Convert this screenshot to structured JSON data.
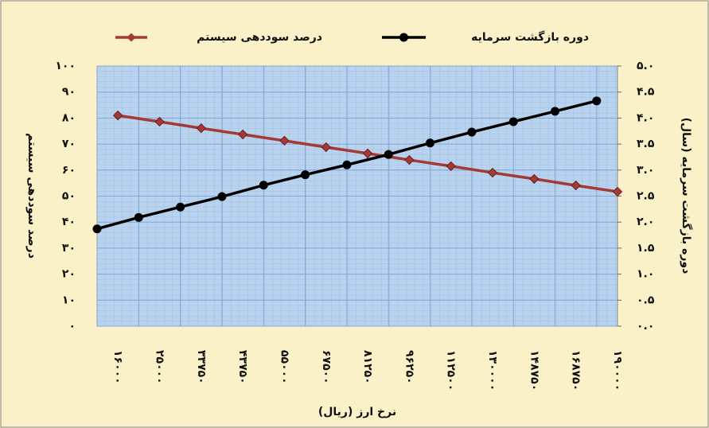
{
  "chart_data": {
    "type": "line",
    "categories": [
      "۱۶۰۰۰",
      "۲۵۰۰۰",
      "۳۳۷۵۰",
      "۴۳۷۵۰",
      "۵۵۰۰۰",
      "۶۷۵۰۰",
      "۸۱۲۵۰",
      "۹۶۲۵۰",
      "۱۱۲۵۰۰",
      "۱۳۰۰۰۰",
      "۱۴۸۷۵۰",
      "۱۶۸۷۵۰",
      "۱۹۰۰۰۰"
    ],
    "x_label": "نرخ ارز (ریال)",
    "y_label": "درصد سوددهی سیستم",
    "y2_label": "دوره بازگشت سرمایه (سال)",
    "series": [
      {
        "name": "درصد سوددهی سیستم",
        "color": "#a33a36",
        "values": [
          81,
          78.6,
          76.1,
          73.7,
          71.3,
          68.8,
          66.4,
          63.9,
          61.5,
          59,
          56.6,
          54.1,
          51.7
        ]
      },
      {
        "name": "دوره بازگشت سرمایه",
        "color": "#000000",
        "axis": "y2",
        "values": [
          1.87,
          2.09,
          2.29,
          2.49,
          2.71,
          2.91,
          3.1,
          3.3,
          3.52,
          3.73,
          3.93,
          4.13,
          4.33
        ]
      }
    ],
    "ylim": [
      0,
      100
    ],
    "yticks": [
      {
        "value": 0,
        "label": "۰"
      },
      {
        "value": 10,
        "label": "۱۰"
      },
      {
        "value": 20,
        "label": "۲۰"
      },
      {
        "value": 30,
        "label": "۳۰"
      },
      {
        "value": 40,
        "label": "۴۰"
      },
      {
        "value": 50,
        "label": "۵۰"
      },
      {
        "value": 60,
        "label": "۶۰"
      },
      {
        "value": 70,
        "label": "۷۰"
      },
      {
        "value": 80,
        "label": "۸۰"
      },
      {
        "value": 90,
        "label": "۹۰"
      },
      {
        "value": 100,
        "label": "۱۰۰"
      }
    ],
    "y2lim": [
      0,
      5
    ],
    "y2ticks": [
      {
        "value": 0,
        "label": "۰.۰"
      },
      {
        "value": 0.5,
        "label": "۰.۵"
      },
      {
        "value": 1,
        "label": "۱.۰"
      },
      {
        "value": 1.5,
        "label": "۱.۵"
      },
      {
        "value": 2,
        "label": "۲.۰"
      },
      {
        "value": 2.5,
        "label": "۲.۵"
      },
      {
        "value": 3,
        "label": "۳.۰"
      },
      {
        "value": 3.5,
        "label": "۳.۵"
      },
      {
        "value": 4,
        "label": "۴.۰"
      },
      {
        "value": 4.5,
        "label": "۴.۵"
      },
      {
        "value": 5,
        "label": "۵.۰"
      }
    ],
    "grid": true
  }
}
